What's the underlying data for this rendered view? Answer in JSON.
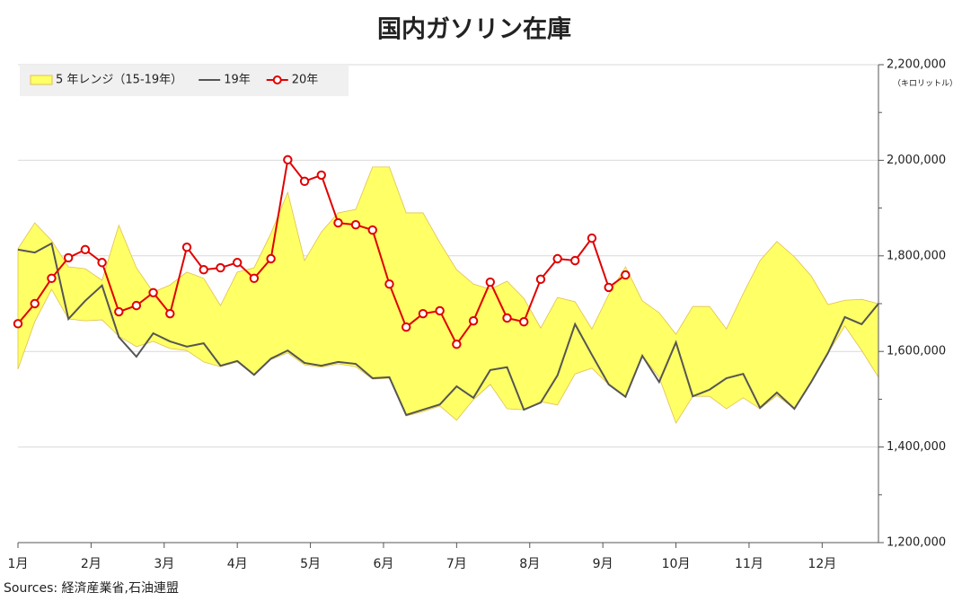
{
  "chart_data": {
    "type": "line",
    "title": "国内ガソリン在庫",
    "y_unit_label": "（キロリットル）",
    "source": "Sources: 経済産業省,石油連盟",
    "x": [
      1,
      1.23,
      1.46,
      1.69,
      1.92,
      2.15,
      2.38,
      2.62,
      2.85,
      3.08,
      3.31,
      3.54,
      3.77,
      4,
      4.23,
      4.46,
      4.69,
      4.92,
      5.15,
      5.38,
      5.62,
      5.85,
      6.08,
      6.31,
      6.54,
      6.77,
      7,
      7.23,
      7.46,
      7.69,
      7.92,
      8.15,
      8.38,
      8.62,
      8.85,
      9.08,
      9.31,
      9.54,
      9.77,
      10,
      10.23,
      10.46,
      10.69,
      10.92,
      11.15,
      11.38,
      11.62,
      11.85,
      12.08,
      12.31,
      12.54,
      12.77
    ],
    "xlim": [
      1,
      12.77
    ],
    "xticks": [
      {
        "value": 1,
        "label": "1月"
      },
      {
        "value": 2,
        "label": "2月"
      },
      {
        "value": 3,
        "label": "3月"
      },
      {
        "value": 4,
        "label": "4月"
      },
      {
        "value": 5,
        "label": "5月"
      },
      {
        "value": 6,
        "label": "6月"
      },
      {
        "value": 7,
        "label": "7月"
      },
      {
        "value": 8,
        "label": "8月"
      },
      {
        "value": 9,
        "label": "9月"
      },
      {
        "value": 10,
        "label": "10月"
      },
      {
        "value": 11,
        "label": "11月"
      },
      {
        "value": 12,
        "label": "12月"
      }
    ],
    "ylim": [
      1200000,
      2200000
    ],
    "yticks": [
      {
        "value": 1200000,
        "label": "1,200,000"
      },
      {
        "value": 1400000,
        "label": "1,400,000"
      },
      {
        "value": 1600000,
        "label": "1,600,000"
      },
      {
        "value": 1800000,
        "label": "1,800,000"
      },
      {
        "value": 2000000,
        "label": "2,000,000"
      },
      {
        "value": 2200000,
        "label": "2,200,000"
      }
    ],
    "yminorticks": [
      1300000,
      1500000,
      1700000,
      1900000,
      2100000
    ],
    "grid": true,
    "legend": "top-left",
    "series": [
      {
        "name": "5 年レンジ（15-19年）",
        "kind": "range",
        "color": "#ffff66",
        "edge_color": "#e0c050",
        "high": [
          1815000,
          1869000,
          1832000,
          1777000,
          1773000,
          1749000,
          1864000,
          1775000,
          1724000,
          1739000,
          1766000,
          1753000,
          1696000,
          1766000,
          1775000,
          1847000,
          1933000,
          1790000,
          1850000,
          1890000,
          1897000,
          1986000,
          1986000,
          1890000,
          1890000,
          1828000,
          1771000,
          1741000,
          1730000,
          1747000,
          1711000,
          1649000,
          1713000,
          1704000,
          1647000,
          1719000,
          1777000,
          1706000,
          1681000,
          1636000,
          1694000,
          1694000,
          1647000,
          1721000,
          1790000,
          1830000,
          1798000,
          1758000,
          1698000,
          1707000,
          1709000,
          1700000
        ],
        "low": [
          1563000,
          1662000,
          1730000,
          1668000,
          1664000,
          1666000,
          1632000,
          1610000,
          1621000,
          1606000,
          1602000,
          1578000,
          1568000,
          1578000,
          1550000,
          1583000,
          1597000,
          1572000,
          1567000,
          1574000,
          1568000,
          1542000,
          1544000,
          1465000,
          1474000,
          1486000,
          1456000,
          1499000,
          1531000,
          1480000,
          1478000,
          1495000,
          1488000,
          1553000,
          1565000,
          1531000,
          1505000,
          1591000,
          1546000,
          1450000,
          1506000,
          1506000,
          1480000,
          1503000,
          1480000,
          1508000,
          1480000,
          1536000,
          1597000,
          1653000,
          1602000,
          1546000
        ]
      },
      {
        "name": "19年",
        "kind": "line",
        "color": "#555555",
        "values": [
          1813000,
          1807000,
          1826000,
          1668000,
          1706000,
          1738000,
          1630000,
          1589000,
          1638000,
          1621000,
          1610000,
          1617000,
          1570000,
          1580000,
          1551000,
          1585000,
          1602000,
          1576000,
          1570000,
          1578000,
          1574000,
          1544000,
          1546000,
          1467000,
          1478000,
          1489000,
          1527000,
          1503000,
          1561000,
          1567000,
          1478000,
          1493000,
          1550000,
          1657000,
          1593000,
          1531000,
          1505000,
          1591000,
          1536000,
          1619000,
          1506000,
          1520000,
          1544000,
          1553000,
          1482000,
          1514000,
          1480000,
          1536000,
          1597000,
          1672000,
          1657000,
          1700000
        ]
      },
      {
        "name": "20年",
        "kind": "marker-line",
        "color": "#e00000",
        "values": [
          1658000,
          1700000,
          1753000,
          1796000,
          1813000,
          1786000,
          1683000,
          1696000,
          1723000,
          1679000,
          1818000,
          1771000,
          1775000,
          1786000,
          1753000,
          1794000,
          2001000,
          1956000,
          1969000,
          1869000,
          1865000,
          1854000,
          1741000,
          1651000,
          1679000,
          1685000,
          1615000,
          1664000,
          1745000,
          1670000,
          1662000,
          1751000,
          1794000,
          1790000,
          1837000,
          1734000,
          1760000,
          null,
          null,
          null,
          null,
          null,
          null,
          null,
          null,
          null,
          null,
          null,
          null,
          null,
          null,
          null
        ]
      }
    ]
  }
}
